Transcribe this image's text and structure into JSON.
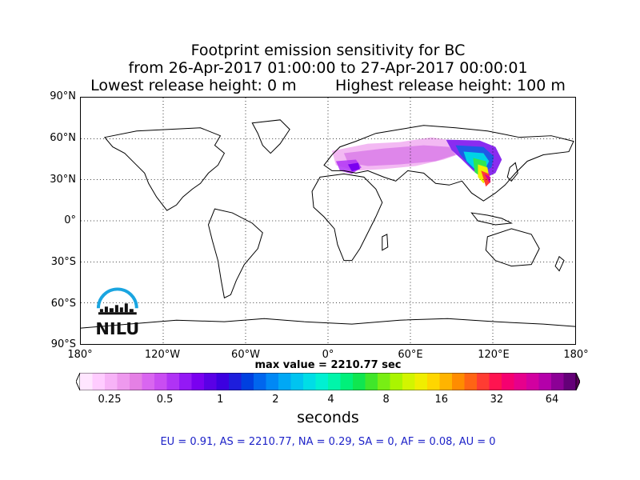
{
  "title": {
    "line1": "Footprint emission sensitivity for BC",
    "line2": "from 26-Apr-2017 01:00:00 to 27-Apr-2017 00:00:01",
    "lowest": "Lowest release height: 0 m",
    "highest": "Highest release height: 100 m"
  },
  "map": {
    "projection": "equirectangular",
    "lon_range": [
      -180,
      180
    ],
    "lat_range": [
      -90,
      90
    ],
    "lat_labels": [
      "90°N",
      "60°N",
      "30°N",
      "0°",
      "30°S",
      "60°S",
      "90°S"
    ],
    "lon_labels": [
      "180°",
      "120°W",
      "60°W",
      "0°",
      "60°E",
      "120°E",
      "180°"
    ],
    "gridlines": "dotted",
    "land_color": "#ffffff",
    "coast_color": "#000000"
  },
  "logo": {
    "text": "NILU",
    "arc_color": "#1aa5e0"
  },
  "max_value": "max value = 2210.77 sec",
  "colorbar": {
    "tick_labels": [
      "0.25",
      "0.5",
      "1",
      "2",
      "4",
      "8",
      "16",
      "32",
      "64"
    ],
    "units": "seconds",
    "colors": [
      "#ffe6ff",
      "#ffccff",
      "#f7b3f7",
      "#ee99ee",
      "#e580e5",
      "#d966f0",
      "#c94df2",
      "#b033f5",
      "#9419f5",
      "#7a00f0",
      "#5a00e6",
      "#3c00e0",
      "#1e1edc",
      "#0040e0",
      "#0066ee",
      "#0088f5",
      "#00a8f5",
      "#00c4f0",
      "#00dde6",
      "#00f0d2",
      "#00f5aa",
      "#00f07a",
      "#10e650",
      "#40e62a",
      "#78ee14",
      "#aaf500",
      "#d2f500",
      "#f0ee00",
      "#ffd600",
      "#ffb400",
      "#ff8c00",
      "#ff6414",
      "#ff3c32",
      "#ff1450",
      "#f50070",
      "#e6008c",
      "#d200a0",
      "#b400aa",
      "#8c0096",
      "#640078"
    ]
  },
  "region_sums": "EU = 0.91,  AS = 2210.77,  NA = 0.29,  SA = 0,  AF = 0.08,  AU = 0"
}
